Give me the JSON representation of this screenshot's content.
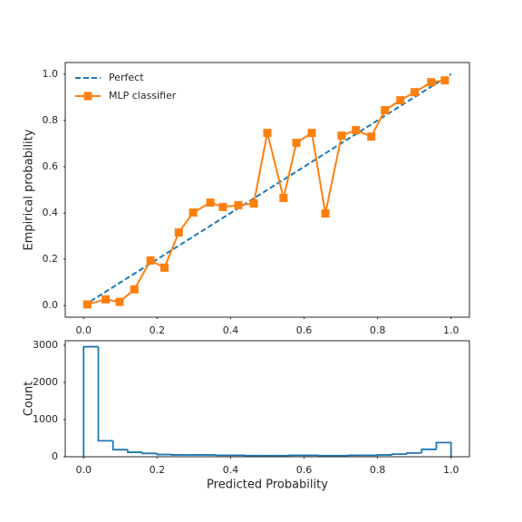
{
  "chart_data": [
    {
      "type": "line",
      "ylabel": "Empirical probability",
      "xlim": [
        -0.05,
        1.05
      ],
      "ylim": [
        -0.05,
        1.05
      ],
      "xticks": [
        {
          "value": 0,
          "label": "0.0"
        },
        0.2,
        0.4,
        0.6,
        0.8,
        {
          "value": 1,
          "label": "1.0"
        }
      ],
      "yticks": [
        {
          "value": 0,
          "label": "0.0"
        },
        0.2,
        0.4,
        0.6,
        0.8,
        {
          "value": 1,
          "label": "1.0"
        }
      ],
      "legend": "upper left",
      "series": [
        {
          "name": "Perfect",
          "color": "#1f77b4",
          "style": "dashed",
          "x": [
            0,
            1
          ],
          "values": [
            0,
            1
          ]
        },
        {
          "name": "MLP classifier",
          "color": "#ff7f0e",
          "marker": "square",
          "x": [
            0.01,
            0.06,
            0.098,
            0.138,
            0.182,
            0.22,
            0.259,
            0.298,
            0.345,
            0.379,
            0.421,
            0.463,
            0.5,
            0.544,
            0.579,
            0.621,
            0.658,
            0.702,
            0.741,
            0.783,
            0.82,
            0.862,
            0.901,
            0.946,
            0.983
          ],
          "values": [
            0.005,
            0.027,
            0.016,
            0.07,
            0.195,
            0.164,
            0.316,
            0.402,
            0.445,
            0.426,
            0.434,
            0.441,
            0.746,
            0.465,
            0.703,
            0.746,
            0.398,
            0.734,
            0.758,
            0.73,
            0.844,
            0.887,
            0.922,
            0.965,
            0.973
          ]
        }
      ]
    },
    {
      "type": "histogram",
      "xlabel": "Predicted Probability",
      "ylabel": "Count",
      "xlim": [
        -0.05,
        1.05
      ],
      "ylim": [
        0,
        3120
      ],
      "xticks": [
        {
          "value": 0,
          "label": "0.0"
        },
        0.2,
        0.4,
        0.6,
        0.8,
        {
          "value": 1,
          "label": "1.0"
        }
      ],
      "yticks": [
        0,
        1000,
        2000,
        3000
      ],
      "color": "#1f77b4",
      "bins": [
        0,
        0.04,
        0.08,
        0.12,
        0.16,
        0.2,
        0.24,
        0.28,
        0.32,
        0.36,
        0.4,
        0.44,
        0.48,
        0.52,
        0.56,
        0.6,
        0.64,
        0.68,
        0.72,
        0.76,
        0.8,
        0.84,
        0.88,
        0.92,
        0.96,
        1
      ],
      "counts": [
        2960,
        430,
        190,
        120,
        90,
        60,
        50,
        50,
        50,
        40,
        40,
        30,
        30,
        30,
        40,
        40,
        30,
        30,
        40,
        40,
        50,
        70,
        100,
        200,
        380
      ]
    }
  ]
}
